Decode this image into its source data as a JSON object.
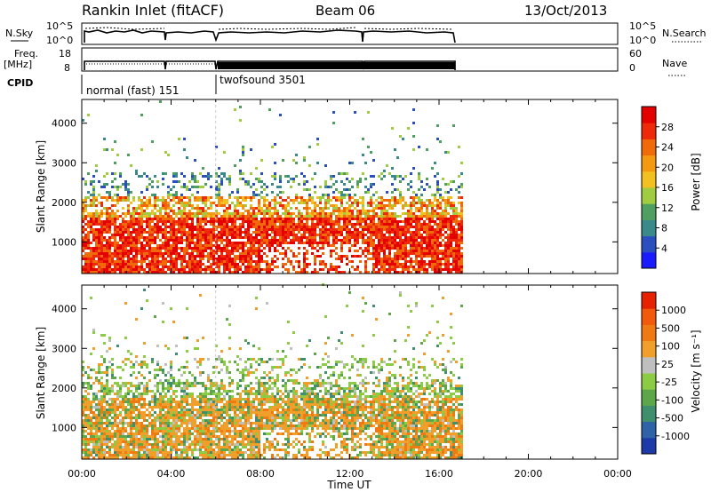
{
  "header": {
    "station": "Rankin Inlet (fitACF)",
    "beam": "Beam 06",
    "date": "13/Oct/2013"
  },
  "strips": {
    "nsky": {
      "label": "N.Sky",
      "ticks": [
        "10^5",
        "10^0"
      ]
    },
    "nsearch": {
      "label": "N.Search",
      "ticks": [
        "10^5",
        "10^0"
      ]
    },
    "freq": {
      "label_top": "Freq.",
      "label_unit": "[MHz]",
      "ticks": [
        "18",
        "8"
      ]
    },
    "nave": {
      "label": "Nave",
      "ticks": [
        "60",
        "0"
      ]
    },
    "cpid": {
      "label": "CPID",
      "segments": [
        "normal (fast) 151",
        "twofsound 3501"
      ]
    }
  },
  "chart_data": [
    {
      "type": "heatmap",
      "title": "",
      "xlabel": "",
      "ylabel": "Slant Range [km]",
      "xlim": [
        0,
        24
      ],
      "ylim": [
        200,
        4600
      ],
      "x_ticks": [],
      "y_ticks": [
        "1000",
        "2000",
        "3000",
        "4000"
      ],
      "colorbar": {
        "label": "Power [dB]",
        "ticks": [
          "4",
          "8",
          "12",
          "16",
          "20",
          "24",
          "28"
        ],
        "range": [
          0,
          32
        ],
        "colors": [
          "#1a1aff",
          "#2c4fbf",
          "#3a8a8a",
          "#4fa060",
          "#9fcc40",
          "#f2c020",
          "#f59a10",
          "#f06a0a",
          "#ee2a0a",
          "#e50000"
        ]
      },
      "data_extent_hours": [
        0,
        17
      ]
    },
    {
      "type": "heatmap",
      "title": "",
      "xlabel": "Time UT",
      "ylabel": "Slant Range [km]",
      "xlim": [
        0,
        24
      ],
      "ylim": [
        200,
        4600
      ],
      "x_ticks": [
        "00:00",
        "04:00",
        "08:00",
        "12:00",
        "16:00",
        "20:00",
        "00:00"
      ],
      "y_ticks": [
        "1000",
        "2000",
        "3000",
        "4000"
      ],
      "colorbar": {
        "label": "Velocity [m s⁻¹]",
        "ticks": [
          "1000",
          "500",
          "100",
          "25",
          "-25",
          "-100",
          "-500",
          "-1000"
        ],
        "colors": [
          "#1c3aa8",
          "#2f62a6",
          "#3f8e6e",
          "#5ea64a",
          "#8ccc44",
          "#bfbfbf",
          "#f0a02a",
          "#f07a12",
          "#f05a0a",
          "#e62200"
        ]
      },
      "data_extent_hours": [
        0,
        17
      ]
    }
  ]
}
